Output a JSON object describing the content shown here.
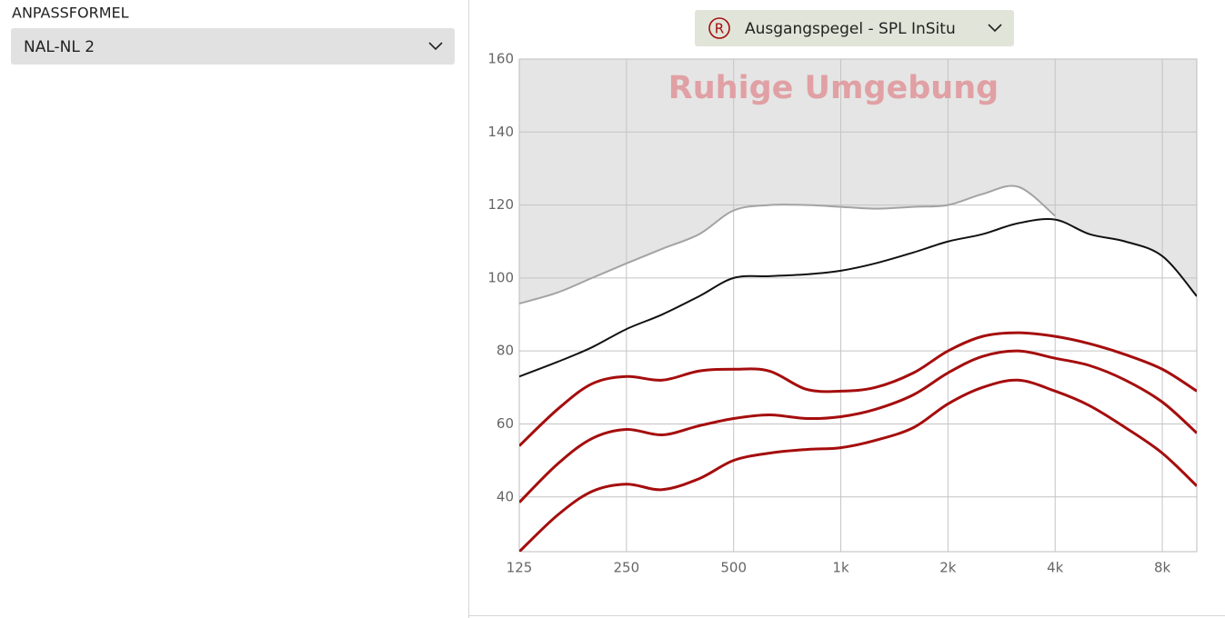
{
  "panel": {
    "label": "ANPASSFORMEL",
    "formula": "NAL-NL 2"
  },
  "selector": {
    "icon": "R",
    "label": "Ausgangspegel - SPL InSitu"
  },
  "chart_data": {
    "type": "line",
    "annotation": "Ruhige Umgebung",
    "x": [
      125,
      160,
      200,
      250,
      315,
      400,
      500,
      630,
      800,
      1000,
      1250,
      1600,
      2000,
      2500,
      3150,
      4000,
      5000,
      6300,
      8000,
      10000
    ],
    "xlim": [
      125,
      10000
    ],
    "xscale": "log",
    "xticks": [
      125,
      250,
      500,
      {
        "value": 1000,
        "label": "1k"
      },
      {
        "value": 2000,
        "label": "2k"
      },
      {
        "value": 4000,
        "label": "4k"
      },
      {
        "value": 8000,
        "label": "8k"
      }
    ],
    "ylim": [
      25,
      160
    ],
    "yticks": [
      40,
      60,
      80,
      100,
      120,
      140,
      160
    ],
    "grid": true,
    "series": [
      {
        "color": "#a3a3a3",
        "width": 2,
        "values": [
          93,
          96,
          100,
          104,
          108,
          112,
          118.5,
          120,
          120,
          119.5,
          119,
          119.5,
          120,
          123,
          125,
          117,
          null,
          null,
          null,
          null
        ]
      },
      {
        "color": "#111111",
        "width": 2,
        "values": [
          73,
          77,
          81,
          86,
          90,
          95,
          100,
          100.5,
          101,
          102,
          104,
          107,
          110,
          112,
          115,
          116,
          112,
          110,
          106,
          95
        ]
      },
      {
        "color": "#a50d0d",
        "width": 3,
        "values": [
          54,
          64,
          71,
          73,
          72,
          74.5,
          75,
          74.5,
          69.5,
          69,
          70,
          74,
          80,
          84,
          85,
          84,
          82,
          79,
          75,
          69
        ]
      },
      {
        "color": "#a50d0d",
        "width": 3,
        "values": [
          38.5,
          49,
          56,
          58.5,
          57,
          59.5,
          61.5,
          62.5,
          61.5,
          62,
          64,
          68,
          74,
          78.5,
          80,
          78,
          76,
          72,
          66,
          57.5
        ]
      },
      {
        "color": "#a50d0d",
        "width": 3,
        "values": [
          25,
          35,
          41.5,
          43.5,
          42,
          45,
          50,
          52,
          53,
          53.5,
          55.5,
          59,
          65.5,
          70,
          72,
          69,
          65,
          59,
          52,
          43
        ]
      }
    ]
  }
}
